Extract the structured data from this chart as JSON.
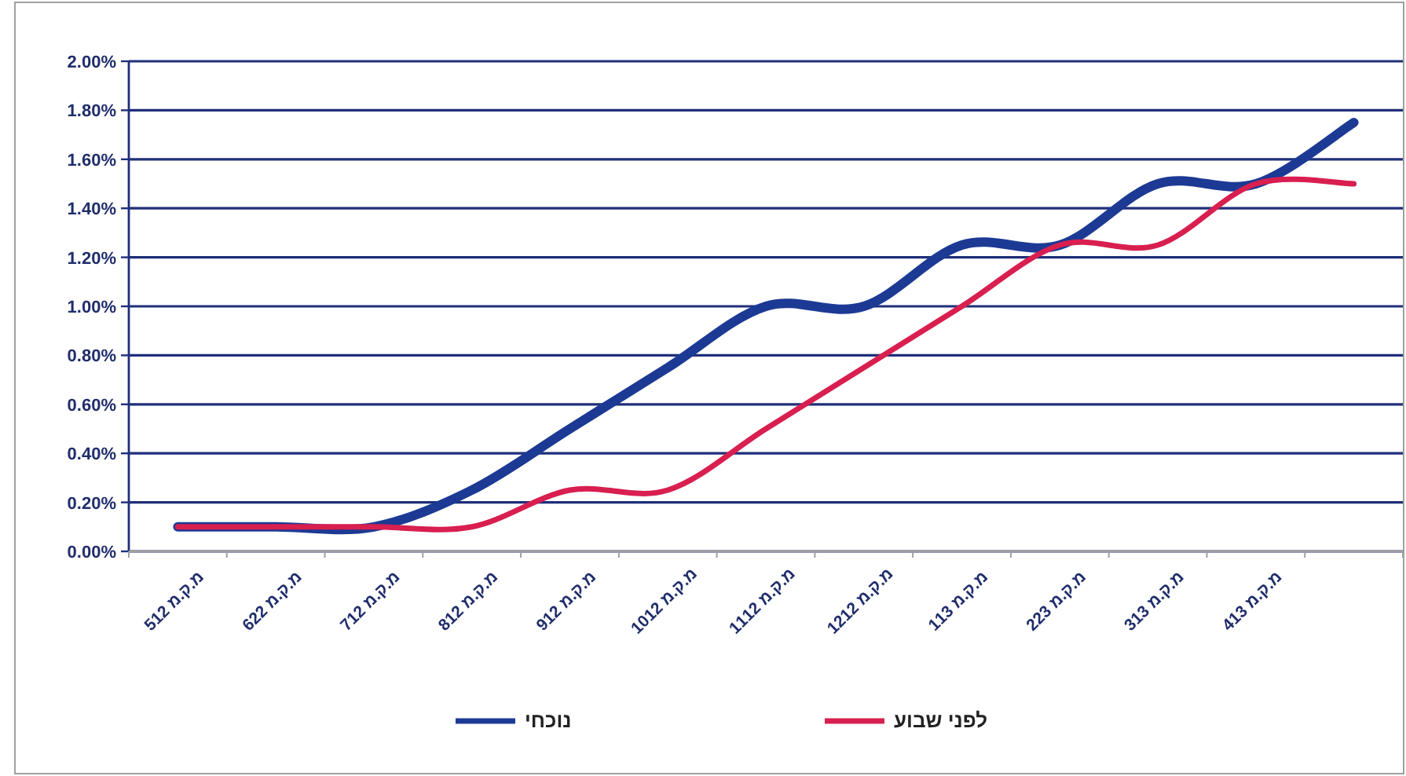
{
  "chart_data": {
    "type": "line",
    "categories": [
      "512 מ.ק.מ",
      "622 מ.ק.מ",
      "712 מ.ק.מ",
      "812 מ.ק.מ",
      "912 מ.ק.מ",
      "1012 מ.ק.מ",
      "1112 מ.ק.מ",
      "1212 מ.ק.מ",
      "113 מ.ק.מ",
      "223 מ.ק.מ",
      "313 מ.ק.מ",
      "413 מ.ק.מ",
      null
    ],
    "series": [
      {
        "name": "נוכחי",
        "color": "#1c3a94",
        "values": [
          0.1,
          0.1,
          0.1,
          0.25,
          0.5,
          0.75,
          1.0,
          1.0,
          1.25,
          1.25,
          1.5,
          1.5,
          1.75
        ]
      },
      {
        "name": "לפני שבוע",
        "color": "#d81f4f",
        "values": [
          0.1,
          0.1,
          0.1,
          0.1,
          0.25,
          0.25,
          0.5,
          0.75,
          1.0,
          1.25,
          1.25,
          1.5,
          1.5
        ]
      }
    ],
    "ylim": [
      0,
      2
    ],
    "yticks": [
      {
        "value": 0,
        "label": "0.00%"
      },
      {
        "value": 0.2,
        "label": "0.20%"
      },
      {
        "value": 0.4,
        "label": "0.40%"
      },
      {
        "value": 0.6,
        "label": "0.60%"
      },
      {
        "value": 0.8,
        "label": "0.80%"
      },
      {
        "value": 1.0,
        "label": "1.00%"
      },
      {
        "value": 1.2,
        "label": "1.20%"
      },
      {
        "value": 1.4,
        "label": "1.40%"
      },
      {
        "value": 1.6,
        "label": "1.60%"
      },
      {
        "value": 1.8,
        "label": "1.80%"
      },
      {
        "value": 2.0,
        "label": "2.00%"
      }
    ],
    "grid": "y",
    "legend": "bottom",
    "marker": "none",
    "line_style": "solid"
  }
}
